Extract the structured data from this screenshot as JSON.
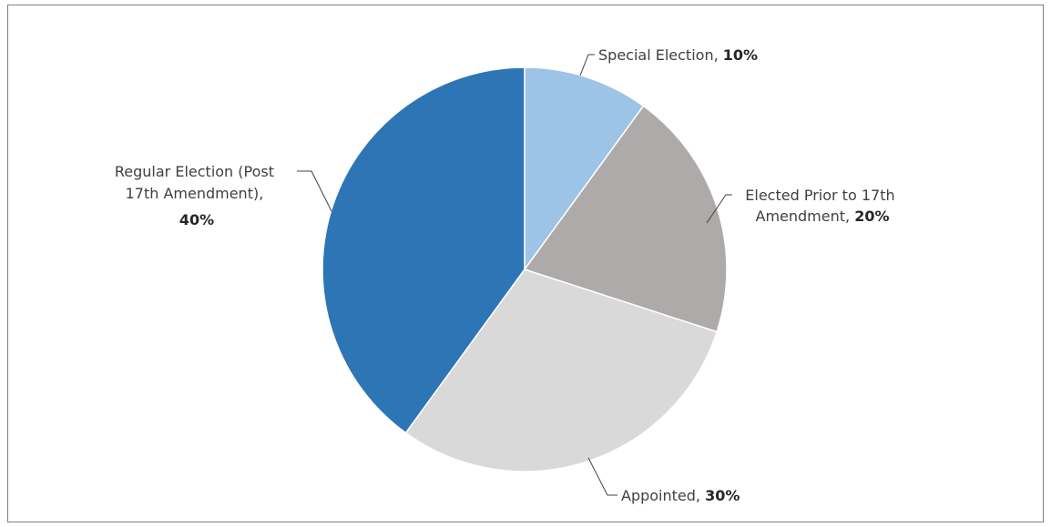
{
  "chart_data": {
    "type": "pie",
    "start_angle_deg": 0,
    "direction": "clockwise",
    "slices": [
      {
        "label": "Special Election",
        "value": 10,
        "pct_label": "10%",
        "color": "#9dc3e6"
      },
      {
        "label": "Elected Prior to 17th Amendment",
        "value": 20,
        "pct_label": "20%",
        "color": "#aeaaaa"
      },
      {
        "label": "Appointed",
        "value": 30,
        "pct_label": "30%",
        "color": "#d9d9d9"
      },
      {
        "label": "Regular Election (Post 17th Amendment)",
        "value": 40,
        "pct_label": "40%",
        "color": "#2e75b6"
      }
    ],
    "labels": {
      "special": {
        "line1": "Special Election, ",
        "pct": "10%"
      },
      "elected": {
        "line1": "Elected Prior to 17th",
        "line2": "Amendment, ",
        "pct": "20%"
      },
      "appointed": {
        "line1": "Appointed, ",
        "pct": "30%"
      },
      "regular": {
        "line1": "Regular Election (Post",
        "line2": "17th Amendment),",
        "pct": "40%"
      }
    },
    "legend": "none"
  }
}
